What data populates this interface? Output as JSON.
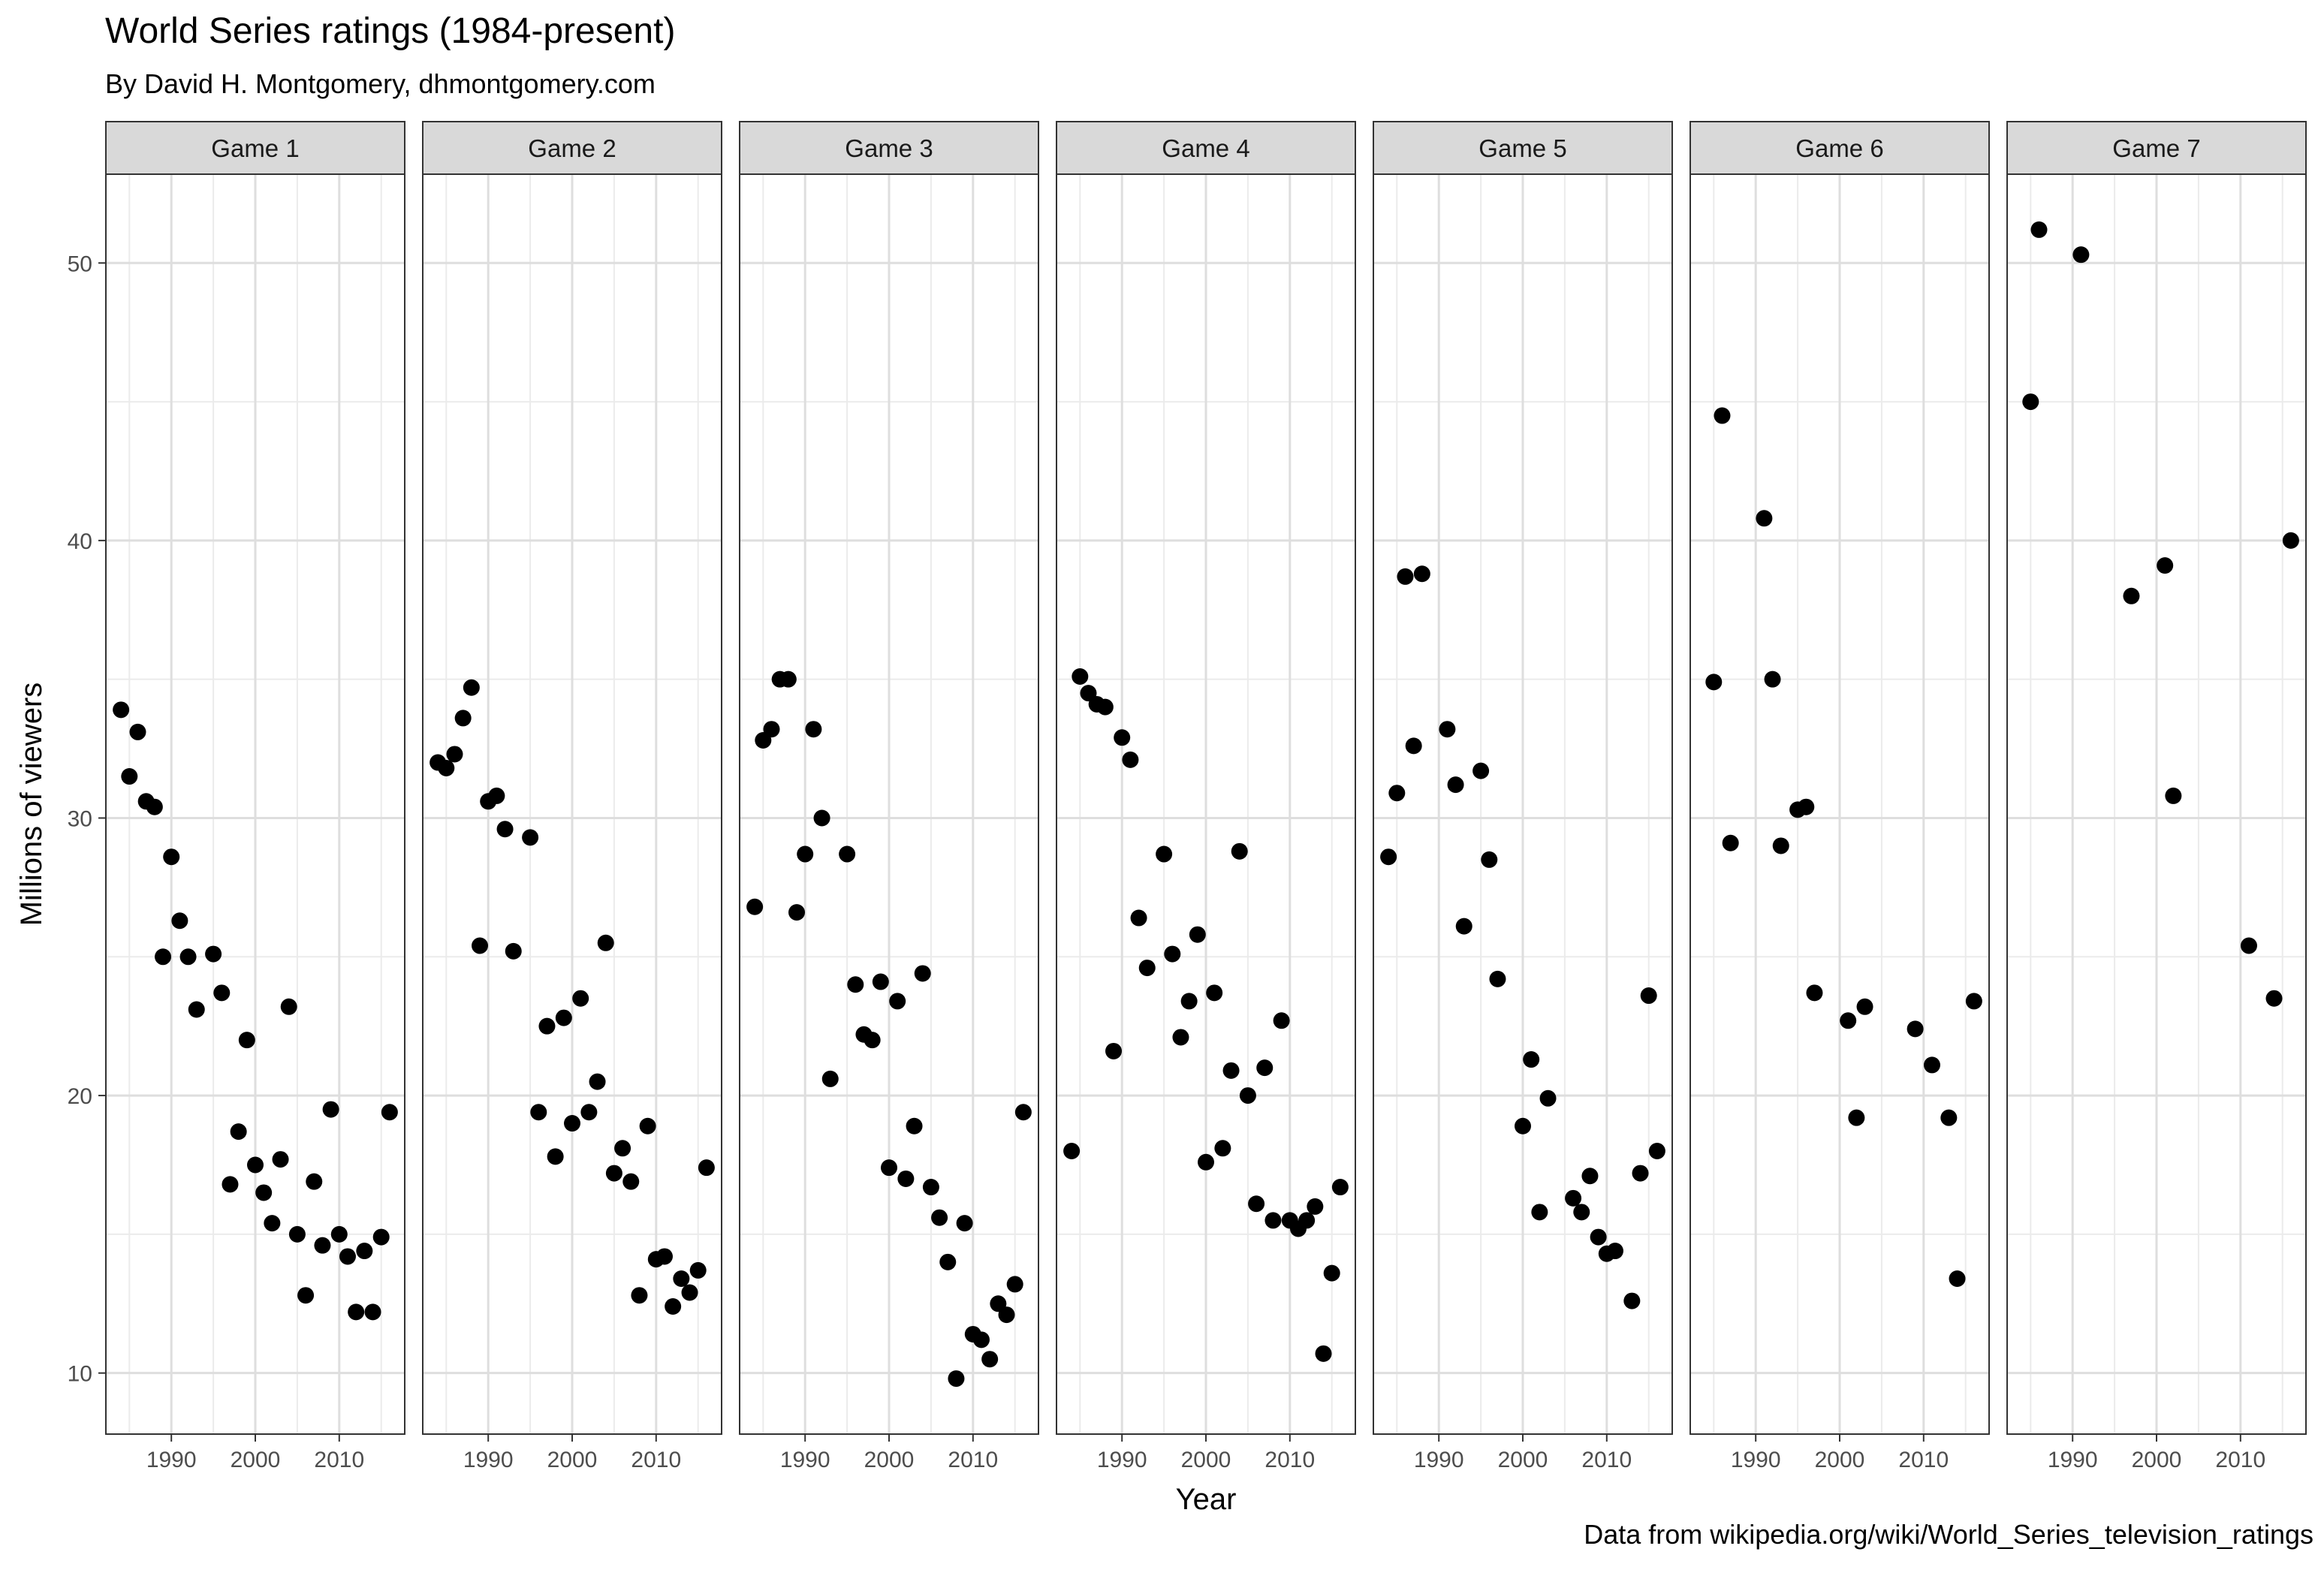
{
  "chart_data": {
    "type": "scatter",
    "title": "World Series ratings (1984-present)",
    "subtitle": "By David H. Montgomery, dhmontgomery.com",
    "caption": "Data from wikipedia.org/wiki/World_Series_television_ratings",
    "xlabel": "Year",
    "ylabel": "Millions of viewers",
    "xlim": [
      1982.2,
      2017.8
    ],
    "ylim": [
      7.8,
      53.2
    ],
    "x_ticks": [
      1990,
      2000,
      2010
    ],
    "y_ticks": [
      10,
      20,
      30,
      40,
      50
    ],
    "grid": true,
    "facets": [
      {
        "name": "Game 1",
        "x": [
          1984,
          1985,
          1986,
          1987,
          1988,
          1989,
          1990,
          1991,
          1992,
          1993,
          1995,
          1996,
          1997,
          1998,
          1999,
          2000,
          2001,
          2002,
          2003,
          2004,
          2005,
          2006,
          2007,
          2008,
          2009,
          2010,
          2011,
          2012,
          2013,
          2014,
          2015,
          2016
        ],
        "y": [
          33.9,
          31.5,
          33.1,
          30.6,
          30.4,
          25.0,
          28.6,
          26.3,
          25.0,
          23.1,
          25.1,
          23.7,
          16.8,
          18.7,
          22.0,
          17.5,
          16.5,
          15.4,
          17.7,
          23.2,
          15.0,
          12.8,
          16.9,
          14.6,
          19.5,
          15.0,
          14.2,
          12.2,
          14.4,
          12.2,
          14.9,
          19.4
        ]
      },
      {
        "name": "Game 2",
        "x": [
          1984,
          1985,
          1986,
          1987,
          1988,
          1989,
          1990,
          1991,
          1992,
          1993,
          1995,
          1996,
          1997,
          1998,
          1999,
          2000,
          2001,
          2002,
          2003,
          2004,
          2005,
          2006,
          2007,
          2008,
          2009,
          2010,
          2011,
          2012,
          2013,
          2014,
          2015,
          2016
        ],
        "y": [
          32.0,
          31.8,
          32.3,
          33.6,
          34.7,
          25.4,
          30.6,
          30.8,
          29.6,
          25.2,
          29.3,
          19.4,
          22.5,
          17.8,
          22.8,
          19.0,
          23.5,
          19.4,
          20.5,
          25.5,
          17.2,
          18.1,
          16.9,
          12.8,
          18.9,
          14.1,
          14.2,
          12.4,
          13.4,
          12.9,
          13.7,
          17.4
        ]
      },
      {
        "name": "Game 3",
        "x": [
          1984,
          1985,
          1986,
          1987,
          1988,
          1989,
          1990,
          1991,
          1992,
          1993,
          1995,
          1996,
          1997,
          1998,
          1999,
          2000,
          2001,
          2002,
          2003,
          2004,
          2005,
          2006,
          2007,
          2008,
          2009,
          2010,
          2011,
          2012,
          2013,
          2014,
          2015,
          2016
        ],
        "y": [
          26.8,
          32.8,
          33.2,
          35.0,
          35.0,
          26.6,
          28.7,
          33.2,
          30.0,
          20.6,
          28.7,
          24.0,
          22.2,
          22.0,
          24.1,
          17.4,
          23.4,
          17.0,
          18.9,
          24.4,
          16.7,
          15.6,
          14.0,
          9.8,
          15.4,
          11.4,
          11.2,
          10.5,
          12.5,
          12.1,
          13.2,
          19.4
        ]
      },
      {
        "name": "Game 4",
        "x": [
          1984,
          1985,
          1986,
          1987,
          1988,
          1989,
          1990,
          1991,
          1992,
          1993,
          1995,
          1996,
          1997,
          1998,
          1999,
          2000,
          2001,
          2002,
          2003,
          2004,
          2005,
          2006,
          2007,
          2008,
          2009,
          2010,
          2011,
          2012,
          2013,
          2014,
          2015,
          2016
        ],
        "y": [
          18.0,
          35.1,
          34.5,
          34.1,
          34.0,
          21.6,
          32.9,
          32.1,
          26.4,
          24.6,
          28.7,
          25.1,
          22.1,
          23.4,
          25.8,
          17.6,
          23.7,
          18.1,
          20.9,
          28.8,
          20.0,
          16.1,
          21.0,
          15.5,
          22.7,
          15.5,
          15.2,
          15.5,
          16.0,
          10.7,
          13.6,
          16.7
        ]
      },
      {
        "name": "Game 5",
        "x": [
          1984,
          1985,
          1986,
          1987,
          1988,
          1991,
          1992,
          1993,
          1995,
          1996,
          1997,
          2000,
          2001,
          2002,
          2003,
          2006,
          2007,
          2008,
          2009,
          2010,
          2011,
          2013,
          2014,
          2015,
          2016
        ],
        "y": [
          28.6,
          30.9,
          38.7,
          32.6,
          38.8,
          33.2,
          31.2,
          26.1,
          31.7,
          28.5,
          24.2,
          18.9,
          21.3,
          15.8,
          19.9,
          16.3,
          15.8,
          17.1,
          14.9,
          14.3,
          14.4,
          12.6,
          17.2,
          23.6,
          18.0
        ]
      },
      {
        "name": "Game 6",
        "x": [
          1985,
          1986,
          1987,
          1991,
          1992,
          1993,
          1995,
          1996,
          1997,
          2001,
          2002,
          2003,
          2009,
          2011,
          2013,
          2014,
          2016
        ],
        "y": [
          34.9,
          44.5,
          29.1,
          40.8,
          35.0,
          29.0,
          30.3,
          30.4,
          23.7,
          22.7,
          19.2,
          23.2,
          22.4,
          21.1,
          19.2,
          13.4,
          23.4
        ]
      },
      {
        "name": "Game 7",
        "x": [
          1985,
          1986,
          1991,
          1997,
          2001,
          2002,
          2011,
          2014,
          2016
        ],
        "y": [
          45.0,
          51.2,
          50.3,
          38.0,
          39.1,
          30.8,
          25.4,
          23.5,
          40.0
        ]
      }
    ]
  }
}
